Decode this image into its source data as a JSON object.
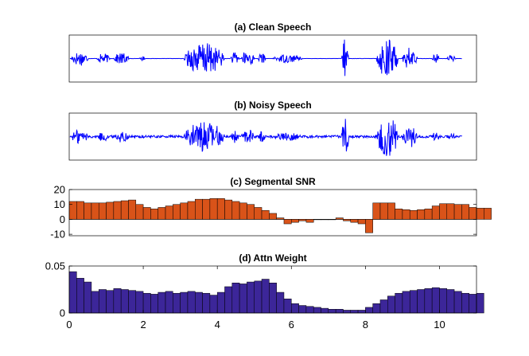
{
  "chart_data": [
    {
      "type": "line",
      "title": "(a) Clean Speech",
      "xlim": [
        0,
        11
      ],
      "ticks_shown": false,
      "color": "#0000ff",
      "segments": [
        {
          "x": [
            0.05,
            0.52
          ],
          "amplitude": 0.35
        },
        {
          "x": [
            0.75,
            1.1
          ],
          "amplitude": 0.25
        },
        {
          "x": [
            1.2,
            1.62
          ],
          "amplitude": 0.28
        },
        {
          "x": [
            1.9,
            2.05
          ],
          "amplitude": 0.12
        },
        {
          "x": [
            3.1,
            4.2
          ],
          "amplitude": 0.75
        },
        {
          "x": [
            4.35,
            4.6
          ],
          "amplitude": 0.3
        },
        {
          "x": [
            4.65,
            5.0
          ],
          "amplitude": 0.4
        },
        {
          "x": [
            5.1,
            5.3
          ],
          "amplitude": 0.25
        },
        {
          "x": [
            5.5,
            6.3
          ],
          "amplitude": 0.2
        },
        {
          "x": [
            7.35,
            7.55
          ],
          "amplitude": 0.95
        },
        {
          "x": [
            8.3,
            8.9
          ],
          "amplitude": 0.95
        },
        {
          "x": [
            9.0,
            9.4
          ],
          "amplitude": 0.55
        },
        {
          "x": [
            9.8,
            10.0
          ],
          "amplitude": 0.25
        },
        {
          "x": [
            10.2,
            10.45
          ],
          "amplitude": 0.15
        }
      ]
    },
    {
      "type": "line",
      "title": "(b) Noisy Speech",
      "xlim": [
        0,
        11
      ],
      "ticks_shown": false,
      "color": "#0000ff",
      "noise_amplitude": 0.06
    },
    {
      "type": "bar",
      "title": "(c) Segmental SNR",
      "color": "#d95319",
      "xlim": [
        0,
        11
      ],
      "ylim": [
        -11,
        20
      ],
      "yticks": [
        20,
        10,
        0,
        -10
      ],
      "bar_width": 0.2,
      "x_start": 0,
      "values": [
        12,
        12,
        11,
        11,
        11,
        11.5,
        12,
        12.5,
        13,
        10,
        8,
        7,
        8,
        9,
        10,
        11,
        12,
        13.5,
        13.5,
        14,
        14,
        13,
        12,
        11,
        10,
        8,
        6,
        4,
        1,
        -3,
        -2,
        -1,
        -2,
        0,
        0,
        0,
        1,
        -1,
        -2,
        -3,
        -9,
        11,
        11,
        11,
        7,
        6.5,
        6,
        6.5,
        7,
        9,
        10.5,
        10.5,
        10,
        10,
        8,
        7.5,
        7.5
      ]
    },
    {
      "type": "bar",
      "title": "(d) Attn Weight",
      "color": "#3c2699",
      "xlim": [
        0,
        11
      ],
      "ylim": [
        0,
        0.05
      ],
      "yticks": [
        0.05,
        0
      ],
      "xticks": [
        0,
        2,
        4,
        6,
        8,
        10
      ],
      "bar_width": 0.2,
      "x_start": 0,
      "values": [
        0.044,
        0.037,
        0.033,
        0.023,
        0.025,
        0.024,
        0.026,
        0.025,
        0.024,
        0.023,
        0.021,
        0.02,
        0.022,
        0.023,
        0.021,
        0.022,
        0.023,
        0.022,
        0.021,
        0.019,
        0.022,
        0.028,
        0.032,
        0.031,
        0.033,
        0.034,
        0.036,
        0.032,
        0.022,
        0.015,
        0.01,
        0.008,
        0.007,
        0.006,
        0.005,
        0.004,
        0.004,
        0.003,
        0.003,
        0.003,
        0.006,
        0.01,
        0.014,
        0.018,
        0.021,
        0.023,
        0.024,
        0.025,
        0.026,
        0.027,
        0.026,
        0.025,
        0.023,
        0.021,
        0.02,
        0.021
      ]
    }
  ]
}
